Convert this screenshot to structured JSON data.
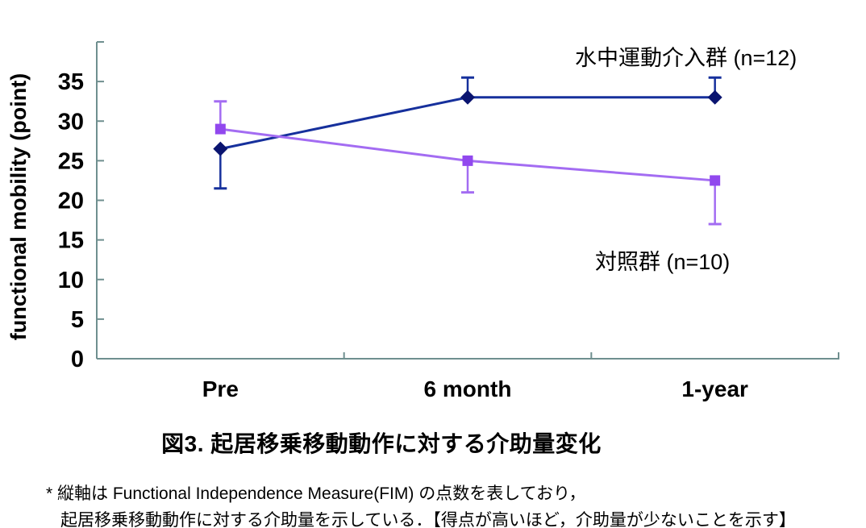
{
  "figure": {
    "title": "図3. 起居移乗移動動作に対する介助量変化",
    "footnote_line1": "* 縦軸は Functional Independence Measure(FIM) の点数を表しており，",
    "footnote_line2": "起居移乗移動動作に対する介助量を示している．【得点が高いほど，介助量が少ないことを示す】"
  },
  "chart_data": {
    "type": "line",
    "title": "図3. 起居移乗移動動作に対する介助量変化",
    "categories": [
      "Pre",
      "6 month",
      "1-year"
    ],
    "series": [
      {
        "name": "水中運動介入群 (n=12)",
        "values": [
          26.5,
          33,
          33
        ],
        "error_up": [
          null,
          35.5,
          35.5
        ],
        "error_down": [
          21.5,
          null,
          null
        ],
        "color": "#16309c",
        "marker_color": "#0a1470",
        "marker": "diamond"
      },
      {
        "name": "対照群 (n=10)",
        "values": [
          29,
          25,
          22.5
        ],
        "error_up": [
          32.5,
          null,
          null
        ],
        "error_down": [
          null,
          21,
          17
        ],
        "color": "#a36cf2",
        "marker_color": "#9148ee",
        "marker": "square"
      }
    ],
    "xlabel": "",
    "ylabel": "functional mobility (point)",
    "ylim": [
      0,
      40
    ],
    "yticks": [
      0,
      5,
      10,
      15,
      20,
      25,
      30,
      35
    ],
    "axis_color": "#6f8f8f",
    "grid": false,
    "legend_position": "inline-labels"
  }
}
